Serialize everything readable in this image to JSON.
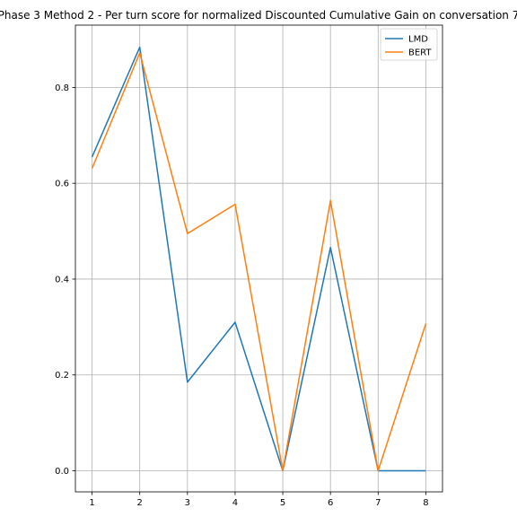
{
  "chart_data": {
    "type": "line",
    "title": "Phase 3 Method 2 - Per turn score for normalized Discounted Cumulative Gain on conversation 7",
    "xlabel": "",
    "ylabel": "",
    "x": [
      1,
      2,
      3,
      4,
      5,
      6,
      7,
      8
    ],
    "xlim": [
      0.65,
      8.35
    ],
    "ylim": [
      -0.044,
      0.93
    ],
    "yticks": [
      0.0,
      0.2,
      0.4,
      0.6,
      0.8
    ],
    "grid": true,
    "legend_position": "top-right",
    "series": [
      {
        "name": "LMD",
        "color": "#1f77b4",
        "values": [
          0.655,
          0.884,
          0.185,
          0.31,
          0.0,
          0.466,
          0.0,
          0.0
        ]
      },
      {
        "name": "BERT",
        "color": "#ff7f0e",
        "values": [
          0.631,
          0.872,
          0.495,
          0.556,
          0.0,
          0.564,
          0.0,
          0.307
        ]
      }
    ]
  }
}
